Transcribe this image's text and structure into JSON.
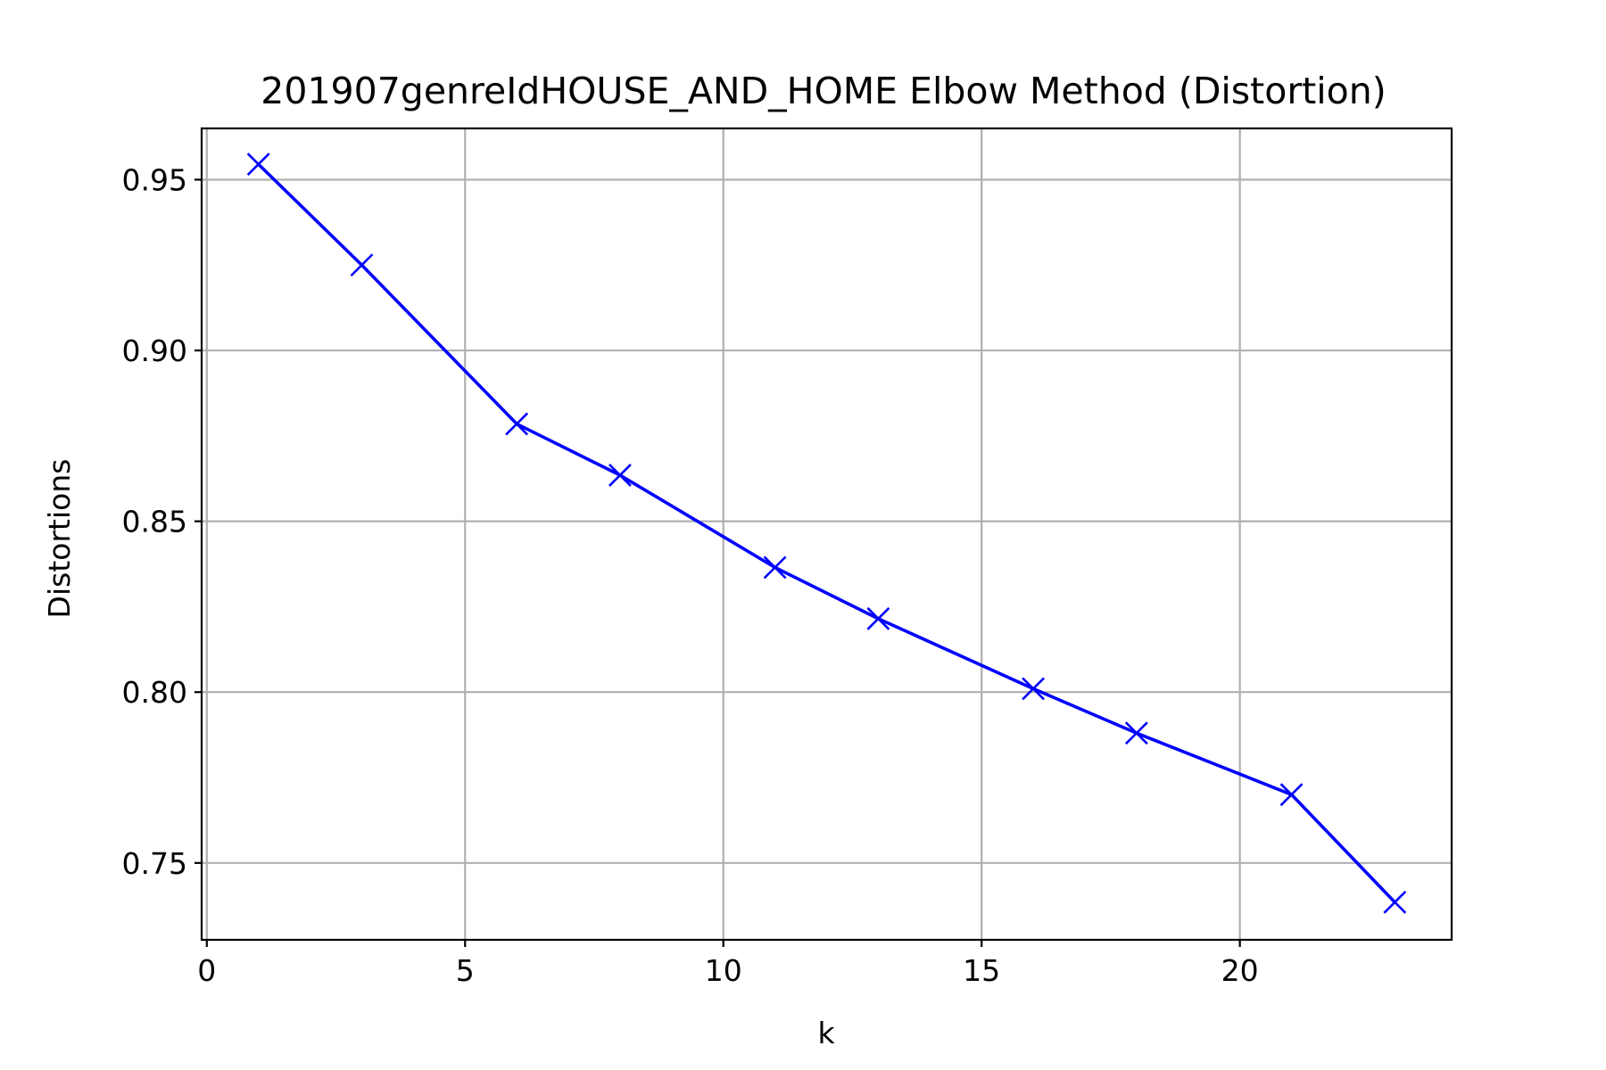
{
  "chart_data": {
    "type": "line",
    "title": "201907genreIdHOUSE_AND_HOME Elbow Method (Distortion)",
    "xlabel": "k",
    "ylabel": "Distortions",
    "xlim": [
      -0.1,
      24.1
    ],
    "ylim": [
      0.7275,
      0.965
    ],
    "xticks": [
      0,
      5,
      10,
      15,
      20
    ],
    "xtick_labels": [
      "0",
      "5",
      "10",
      "15",
      "20"
    ],
    "yticks": [
      0.75,
      0.8,
      0.85,
      0.9,
      0.95
    ],
    "ytick_labels": [
      "0.75",
      "0.80",
      "0.85",
      "0.90",
      "0.95"
    ],
    "grid": true,
    "series": [
      {
        "color": "#0000ff",
        "marker": "x",
        "x": [
          1,
          3,
          6,
          8,
          11,
          13,
          16,
          18,
          21,
          23
        ],
        "y": [
          0.9545,
          0.925,
          0.8785,
          0.8635,
          0.8365,
          0.8215,
          0.801,
          0.788,
          0.77,
          0.7385
        ]
      }
    ]
  }
}
